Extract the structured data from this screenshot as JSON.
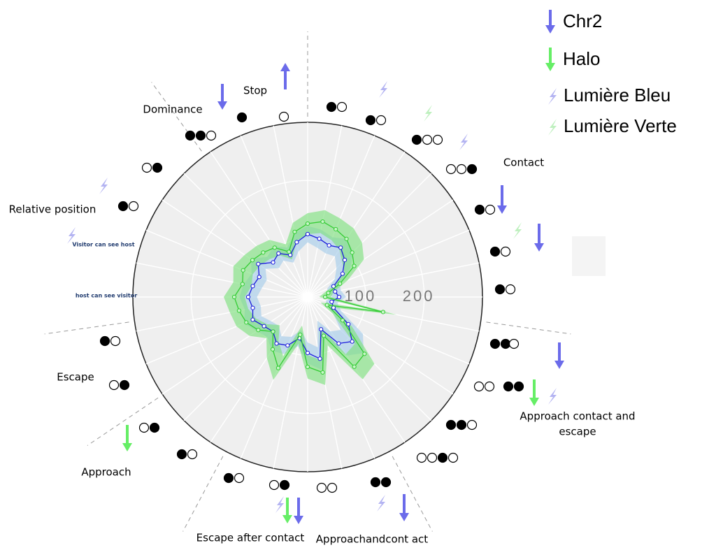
{
  "chart_data": {
    "type": "radar",
    "categories": [
      null,
      null,
      null,
      null,
      null,
      null,
      null,
      null,
      null,
      null,
      null,
      null,
      null,
      null,
      null,
      null,
      null,
      null,
      null,
      null,
      null,
      null,
      null,
      null,
      null,
      null,
      null,
      null,
      null,
      null,
      null,
      null
    ],
    "rlim": [
      0,
      300
    ],
    "rticks": [
      100,
      200
    ],
    "series": [
      {
        "name": "Chr2",
        "color": "#1a1adc",
        "legend_color": "#6b6bea",
        "band_color": "#a6cdea",
        "values": [
          108,
          102,
          96,
          102,
          90,
          72,
          48,
          48,
          54,
          42,
          48,
          84,
          108,
          96,
          60,
          108,
          96,
          72,
          90,
          96,
          84,
          90,
          102,
          96,
          102,
          96,
          90,
          102,
          84,
          90,
          78,
          96
        ],
        "errors": [
          14,
          16,
          15,
          18,
          20,
          16,
          12,
          10,
          12,
          10,
          14,
          30,
          28,
          25,
          16,
          20,
          18,
          14,
          16,
          15,
          14,
          15,
          16,
          14,
          15,
          16,
          14,
          15,
          14,
          15,
          14,
          16
        ]
      },
      {
        "name": "Halo",
        "color": "#33cc33",
        "legend_color": "#66ee66",
        "band_color": "#7fe07f",
        "values": [
          126,
          132,
          126,
          120,
          108,
          96,
          60,
          36,
          30,
          132,
          36,
          72,
          138,
          144,
          72,
          132,
          120,
          66,
          132,
          108,
          84,
          102,
          114,
          120,
          126,
          114,
          120,
          114,
          108,
          102,
          84,
          114
        ],
        "errors": [
          18,
          20,
          20,
          22,
          24,
          20,
          14,
          10,
          10,
          24,
          12,
          20,
          24,
          26,
          18,
          22,
          20,
          16,
          22,
          18,
          16,
          18,
          18,
          16,
          18,
          16,
          18,
          16,
          16,
          16,
          14,
          16
        ]
      }
    ],
    "light_legend": [
      {
        "name": "Lumière Bleu",
        "color": "#b4b4f2"
      },
      {
        "name": "Lumière Verte",
        "color": "#bff0bf"
      }
    ],
    "annotations": [
      {
        "lines": [
          "Stop"
        ]
      },
      {
        "lines": [
          "Dominance"
        ]
      },
      {
        "lines": [
          "Relative position"
        ]
      },
      {
        "lines": [
          "Visitor can see host"
        ]
      },
      {
        "lines": [
          "host can see visitor"
        ]
      },
      {
        "lines": [
          "Escape"
        ]
      },
      {
        "lines": [
          "Approach"
        ]
      },
      {
        "lines": [
          "Escape after contact"
        ]
      },
      {
        "lines": [
          "Approachandcont act"
        ]
      },
      {
        "lines": [
          "Approach contact and",
          "escape"
        ]
      },
      {
        "lines": [
          "Contact"
        ]
      }
    ]
  }
}
